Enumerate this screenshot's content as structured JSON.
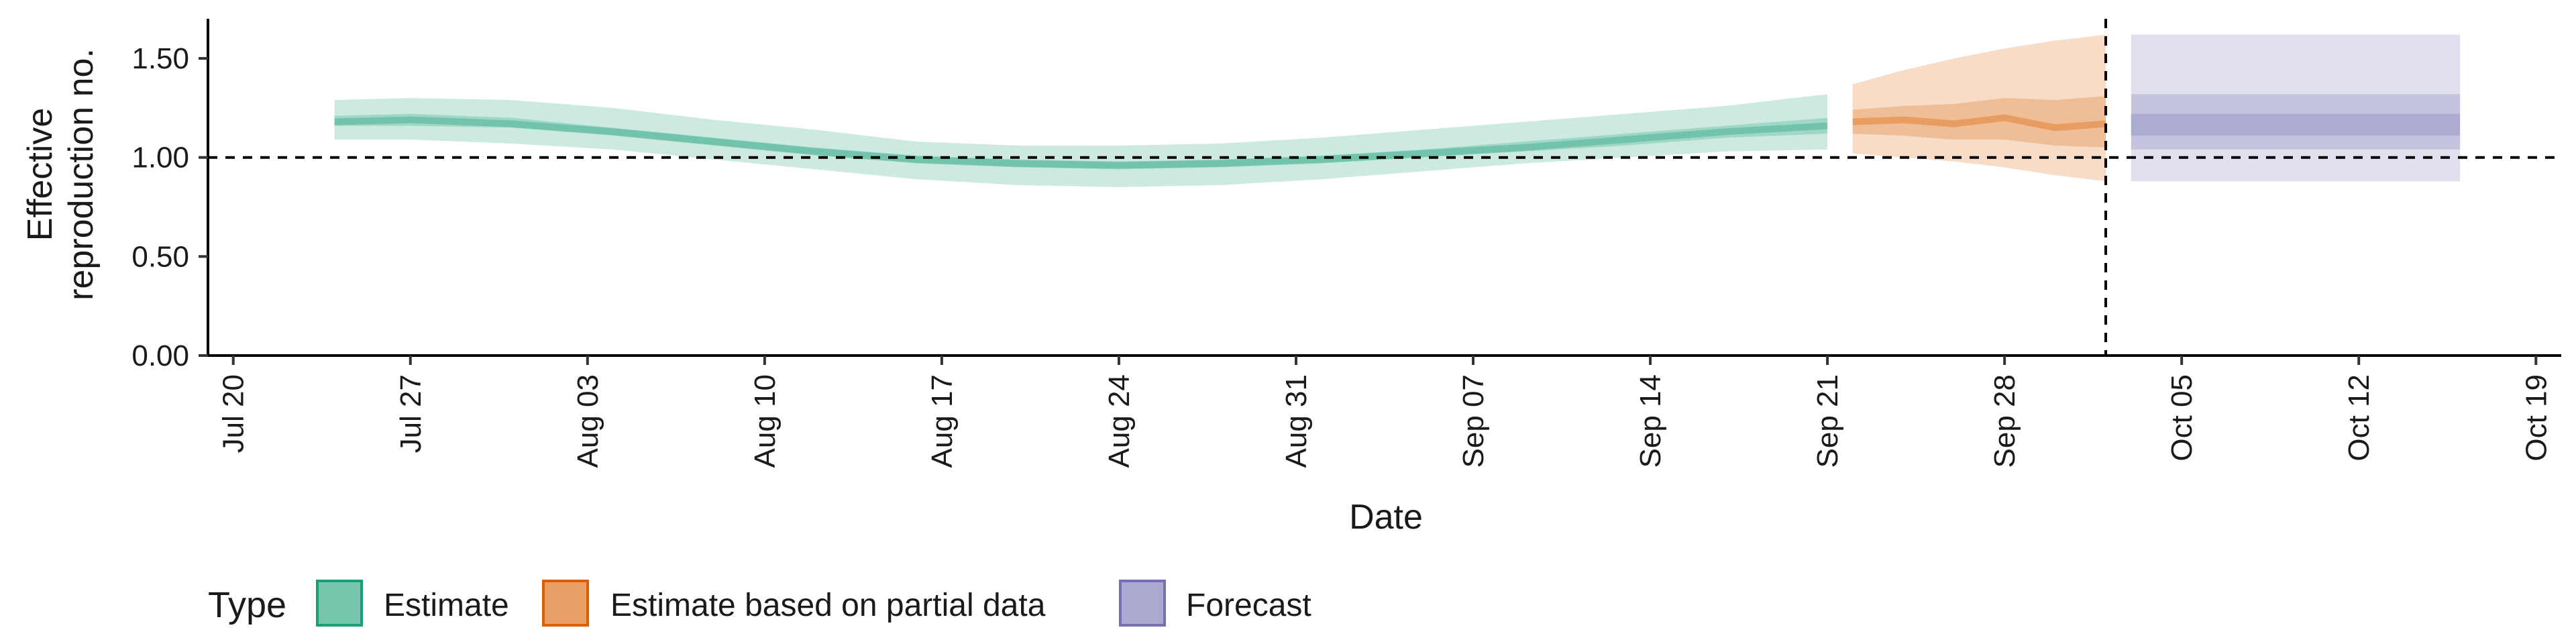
{
  "chart_data": {
    "type": "area",
    "title": "",
    "xlabel": "Date",
    "ylabel_lines": [
      "Effective",
      "reproduction no."
    ],
    "ylim": [
      0,
      1.7
    ],
    "yticks": [
      0,
      0.5,
      1.0,
      1.5
    ],
    "ytick_labels": [
      "0.00",
      "0.50",
      "1.00",
      "1.50"
    ],
    "xlim": [
      "2020-07-19",
      "2020-10-20"
    ],
    "xticks": [
      "2020-07-20",
      "2020-07-27",
      "2020-08-03",
      "2020-08-10",
      "2020-08-17",
      "2020-08-24",
      "2020-08-31",
      "2020-09-07",
      "2020-09-14",
      "2020-09-21",
      "2020-09-28",
      "2020-10-05",
      "2020-10-12",
      "2020-10-19"
    ],
    "xtick_labels": [
      "Jul 20",
      "Jul 27",
      "Aug 03",
      "Aug 10",
      "Aug 17",
      "Aug 24",
      "Aug 31",
      "Sep 07",
      "Sep 14",
      "Sep 21",
      "Sep 28",
      "Oct 05",
      "Oct 12",
      "Oct 19"
    ],
    "reference_line_y": 1.0,
    "reference_line_date": "2020-10-02",
    "grid": false,
    "legend": {
      "title": "Type",
      "placement": "bottom",
      "entries": [
        {
          "label": "Estimate",
          "fill": "#1b9e77",
          "stroke": "#1b9e77"
        },
        {
          "label": "Estimate based on partial data",
          "fill": "#d95f02",
          "stroke": "#d95f02"
        },
        {
          "label": "Forecast",
          "fill": "#7570b3",
          "stroke": "#7570b3"
        }
      ]
    },
    "series": [
      {
        "name": "Estimate",
        "color": "#1b9e77",
        "x": [
          "2020-07-24",
          "2020-07-27",
          "2020-07-31",
          "2020-08-04",
          "2020-08-08",
          "2020-08-12",
          "2020-08-16",
          "2020-08-20",
          "2020-08-24",
          "2020-08-28",
          "2020-09-01",
          "2020-09-05",
          "2020-09-09",
          "2020-09-13",
          "2020-09-17",
          "2020-09-21"
        ],
        "median": [
          1.18,
          1.19,
          1.17,
          1.13,
          1.08,
          1.03,
          0.99,
          0.97,
          0.96,
          0.97,
          0.99,
          1.02,
          1.05,
          1.09,
          1.13,
          1.16
        ],
        "band50": [
          [
            1.16,
            1.21
          ],
          [
            1.16,
            1.22
          ],
          [
            1.15,
            1.2
          ],
          [
            1.11,
            1.15
          ],
          [
            1.06,
            1.1
          ],
          [
            1.01,
            1.05
          ],
          [
            0.97,
            1.01
          ],
          [
            0.95,
            0.99
          ],
          [
            0.94,
            0.98
          ],
          [
            0.95,
            0.99
          ],
          [
            0.97,
            1.01
          ],
          [
            1.0,
            1.04
          ],
          [
            1.03,
            1.08
          ],
          [
            1.06,
            1.12
          ],
          [
            1.1,
            1.16
          ],
          [
            1.12,
            1.2
          ]
        ],
        "band90": [
          [
            1.09,
            1.29
          ],
          [
            1.09,
            1.3
          ],
          [
            1.07,
            1.29
          ],
          [
            1.04,
            1.25
          ],
          [
            0.99,
            1.19
          ],
          [
            0.94,
            1.14
          ],
          [
            0.89,
            1.08
          ],
          [
            0.86,
            1.06
          ],
          [
            0.85,
            1.06
          ],
          [
            0.86,
            1.07
          ],
          [
            0.89,
            1.1
          ],
          [
            0.93,
            1.14
          ],
          [
            0.97,
            1.18
          ],
          [
            1.0,
            1.22
          ],
          [
            1.03,
            1.26
          ],
          [
            1.04,
            1.32
          ]
        ]
      },
      {
        "name": "Estimate based on partial data",
        "color": "#d95f02",
        "x": [
          "2020-09-22",
          "2020-09-24",
          "2020-09-26",
          "2020-09-28",
          "2020-09-30",
          "2020-10-02"
        ],
        "median": [
          1.18,
          1.19,
          1.17,
          1.2,
          1.15,
          1.17
        ],
        "band50": [
          [
            1.12,
            1.24
          ],
          [
            1.11,
            1.26
          ],
          [
            1.09,
            1.27
          ],
          [
            1.09,
            1.3
          ],
          [
            1.06,
            1.29
          ],
          [
            1.05,
            1.31
          ]
        ],
        "band90": [
          [
            1.02,
            1.37
          ],
          [
            1.0,
            1.44
          ],
          [
            0.98,
            1.5
          ],
          [
            0.95,
            1.55
          ],
          [
            0.91,
            1.59
          ],
          [
            0.88,
            1.62
          ]
        ]
      },
      {
        "name": "Forecast",
        "color": "#7570b3",
        "x": [
          "2020-10-03",
          "2020-10-16"
        ],
        "median": [
          1.17,
          1.17
        ],
        "band20": [
          [
            1.11,
            1.22
          ],
          [
            1.11,
            1.22
          ]
        ],
        "band50": [
          [
            1.04,
            1.32
          ],
          [
            1.04,
            1.32
          ]
        ],
        "band90": [
          [
            0.88,
            1.62
          ],
          [
            0.88,
            1.62
          ]
        ]
      }
    ]
  }
}
